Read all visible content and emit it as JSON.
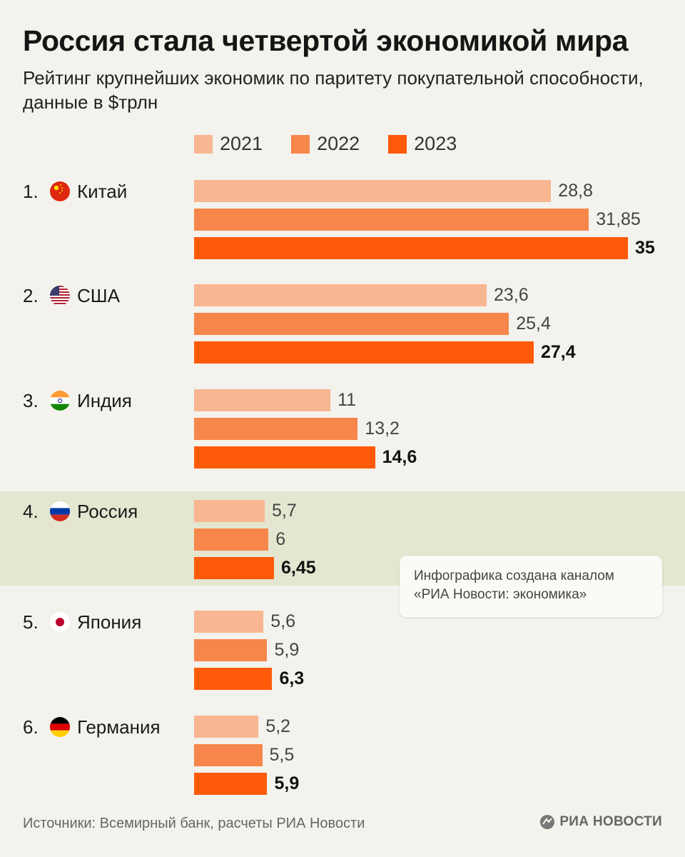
{
  "title": "Россия стала четвертой экономикой мира",
  "subtitle": "Рейтинг крупнейших экономик по паритету покупательной способности, данные в $трлн",
  "colors": {
    "y2021": "#f8b691",
    "y2022": "#f7864a",
    "y2023": "#ff5a0a",
    "highlight": "#e4e6d0",
    "background": "#f3f2ec"
  },
  "chart_data": {
    "type": "bar",
    "orientation": "horizontal",
    "unit": "$трлн",
    "title": "Россия стала четвертой экономикой мира",
    "subtitle": "Рейтинг крупнейших экономик по паритету покупательной способности, данные в $трлн",
    "series_names": [
      "2021",
      "2022",
      "2023"
    ],
    "categories": [
      "Китай",
      "США",
      "Индия",
      "Россия",
      "Япония",
      "Германия"
    ],
    "ranks": [
      "1.",
      "2.",
      "3.",
      "4.",
      "5.",
      "6."
    ],
    "flags": [
      "china-flag-icon",
      "usa-flag-icon",
      "india-flag-icon",
      "russia-flag-icon",
      "japan-flag-icon",
      "germany-flag-icon"
    ],
    "series": [
      {
        "name": "2021",
        "values": [
          28.8,
          23.6,
          11,
          5.7,
          5.6,
          5.2
        ],
        "labels": [
          "28,8",
          "23,6",
          "11",
          "5,7",
          "5,6",
          "5,2"
        ]
      },
      {
        "name": "2022",
        "values": [
          31.85,
          25.4,
          13.2,
          6,
          5.9,
          5.5
        ],
        "labels": [
          "31,85",
          "25,4",
          "13,2",
          "6",
          "5,9",
          "5,5"
        ]
      },
      {
        "name": "2023",
        "values": [
          35,
          27.4,
          14.6,
          6.45,
          6.3,
          5.9
        ],
        "labels": [
          "35",
          "27,4",
          "14,6",
          "6,45",
          "6,3",
          "5,9"
        ]
      }
    ],
    "highlighted_category": "Россия",
    "xlim": [
      0,
      35
    ]
  },
  "note": {
    "line1": "Инфографика создана каналом",
    "line2": "«РИА Новости: экономика»"
  },
  "footer": {
    "source": "Источники: Всемирный банк, расчеты РИА Новости",
    "logo": "РИА НОВОСТИ"
  }
}
